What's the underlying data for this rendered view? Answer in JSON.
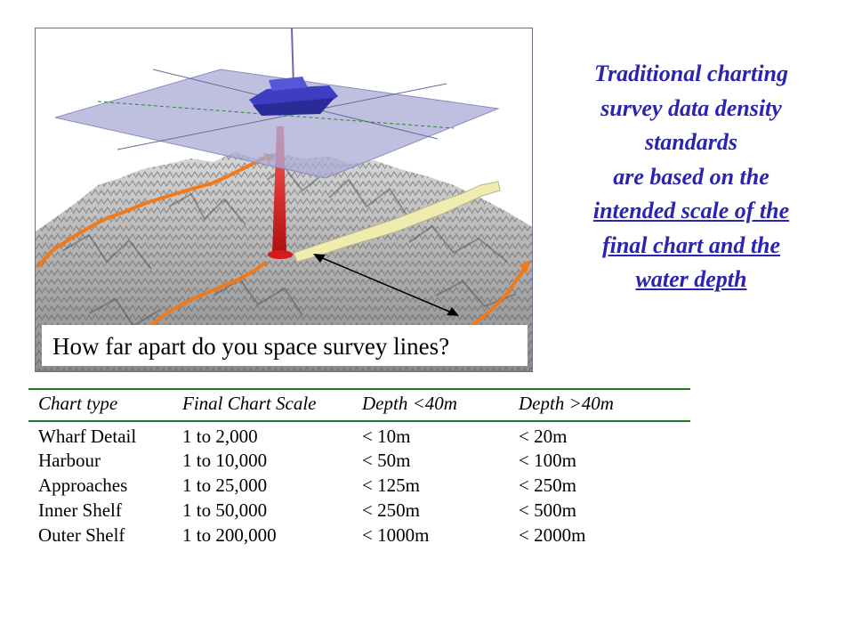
{
  "figure": {
    "question": "How far apart do you space survey lines?"
  },
  "side_text": {
    "lines": [
      {
        "text": "Traditional charting",
        "underline": false
      },
      {
        "text": "survey data density",
        "underline": false
      },
      {
        "text": "standards",
        "underline": false
      },
      {
        "text": "are based on the",
        "underline": false
      },
      {
        "text": "intended scale of the",
        "underline": true
      },
      {
        "text": "final chart and the",
        "underline": true
      },
      {
        "text": "water depth",
        "underline": true
      }
    ],
    "color": "#2b24b0"
  },
  "table": {
    "headers": [
      "Chart type",
      "Final Chart Scale",
      "Depth <40m",
      "Depth >40m"
    ],
    "rows": [
      [
        "Wharf Detail",
        "1 to 2,000",
        "< 10m",
        "< 20m"
      ],
      [
        "Harbour",
        "1 to 10,000",
        "< 50m",
        "< 100m"
      ],
      [
        "Approaches",
        "1 to 25,000",
        "< 125m",
        "< 250m"
      ],
      [
        "Inner Shelf",
        "1 to 50,000",
        "< 250m",
        "< 500m"
      ],
      [
        "Outer Shelf",
        "1 to 200,000",
        "< 1000m",
        "< 2000m"
      ]
    ],
    "rule_color": "#1f7a1f"
  },
  "colors": {
    "survey_line": "#f07a1a",
    "swath_trail": "#f0ecb0",
    "beam": "#d41a1a",
    "plane": "#a9aad6",
    "boat": "#3d3ec2"
  }
}
